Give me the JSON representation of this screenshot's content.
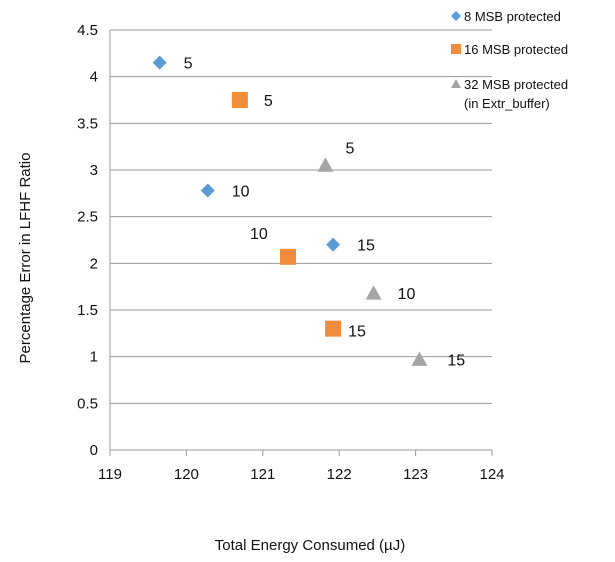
{
  "chart_data": {
    "type": "scatter",
    "xlabel": "Total Energy Consumed (µJ)",
    "ylabel": "Percentage Error in LFHF Ratio",
    "xlim": [
      119,
      124
    ],
    "ylim": [
      0,
      4.5
    ],
    "xticks": [
      "119",
      "120",
      "121",
      "122",
      "123",
      "124"
    ],
    "yticks": [
      "0",
      "0.5",
      "1",
      "1.5",
      "2",
      "2.5",
      "3",
      "3.5",
      "4",
      "4.5"
    ],
    "grid": "horizontal",
    "legend_position": "top-right",
    "series": [
      {
        "name": "8 MSB protected",
        "marker": "diamond",
        "color": "#5b9bd5",
        "points": [
          {
            "x": 119.65,
            "y": 4.15,
            "label": "5"
          },
          {
            "x": 120.28,
            "y": 2.78,
            "label": "10"
          },
          {
            "x": 121.92,
            "y": 2.2,
            "label": "15"
          }
        ]
      },
      {
        "name": "16 MSB protected",
        "marker": "square",
        "color": "#f08c3c",
        "points": [
          {
            "x": 120.7,
            "y": 3.75,
            "label": "5"
          },
          {
            "x": 121.33,
            "y": 2.07,
            "label": "10"
          },
          {
            "x": 121.92,
            "y": 1.3,
            "label": "15"
          }
        ]
      },
      {
        "name": "32 MSB protected",
        "name_line2": "(in Extr_buffer)",
        "marker": "triangle",
        "color": "#a5a5a5",
        "points": [
          {
            "x": 121.82,
            "y": 3.05,
            "label": "5"
          },
          {
            "x": 122.45,
            "y": 1.68,
            "label": "10"
          },
          {
            "x": 123.05,
            "y": 0.97,
            "label": "15"
          }
        ]
      }
    ]
  }
}
